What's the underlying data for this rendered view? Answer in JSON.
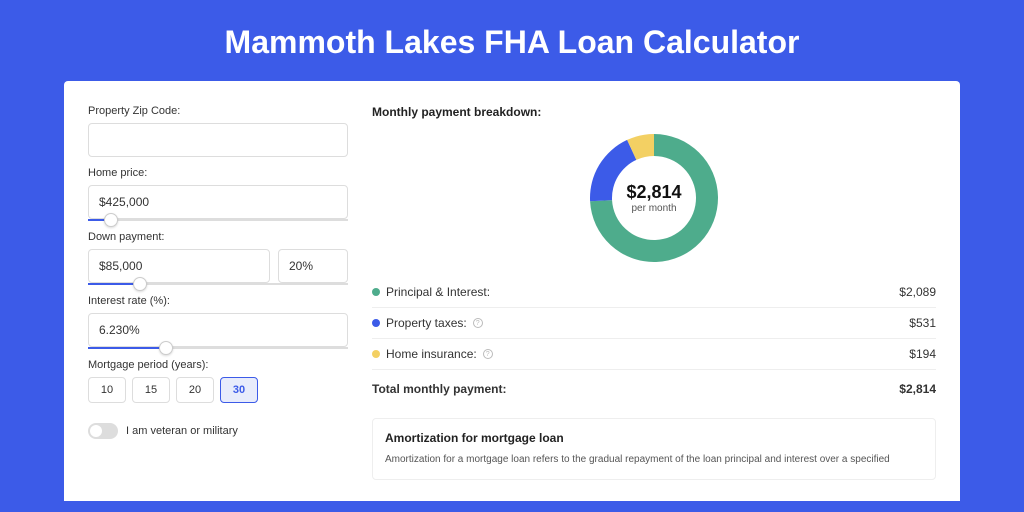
{
  "page": {
    "title": "Mammoth Lakes FHA Loan Calculator",
    "background_color": "#3c5be8",
    "card_background": "#ffffff"
  },
  "form": {
    "zip": {
      "label": "Property Zip Code:",
      "value": ""
    },
    "home_price": {
      "label": "Home price:",
      "value": "$425,000",
      "slider_pct": 9
    },
    "down_payment": {
      "label": "Down payment:",
      "value": "$85,000",
      "percent": "20%",
      "slider_pct": 20
    },
    "interest_rate": {
      "label": "Interest rate (%):",
      "value": "6.230%",
      "slider_pct": 30
    },
    "mortgage_period": {
      "label": "Mortgage period (years):",
      "options": [
        "10",
        "15",
        "20",
        "30"
      ],
      "selected": "30"
    },
    "veteran": {
      "label": "I am veteran or military",
      "on": false
    }
  },
  "breakdown": {
    "title": "Monthly payment breakdown:",
    "donut": {
      "center_value": "$2,814",
      "center_sub": "per month",
      "slices": [
        {
          "key": "principal_interest",
          "value": 2089,
          "pct": 74.2,
          "color": "#4eac8c"
        },
        {
          "key": "property_taxes",
          "value": 531,
          "pct": 18.9,
          "color": "#3c5be8"
        },
        {
          "key": "home_insurance",
          "value": 194,
          "pct": 6.9,
          "color": "#f3d063"
        }
      ],
      "inner_radius": 42,
      "outer_radius": 64
    },
    "rows": [
      {
        "label": "Principal & Interest:",
        "value": "$2,089",
        "color": "#4eac8c",
        "info": false
      },
      {
        "label": "Property taxes:",
        "value": "$531",
        "color": "#3c5be8",
        "info": true
      },
      {
        "label": "Home insurance:",
        "value": "$194",
        "color": "#f3d063",
        "info": true
      }
    ],
    "total": {
      "label": "Total monthly payment:",
      "value": "$2,814"
    }
  },
  "amortization": {
    "title": "Amortization for mortgage loan",
    "text": "Amortization for a mortgage loan refers to the gradual repayment of the loan principal and interest over a specified"
  }
}
